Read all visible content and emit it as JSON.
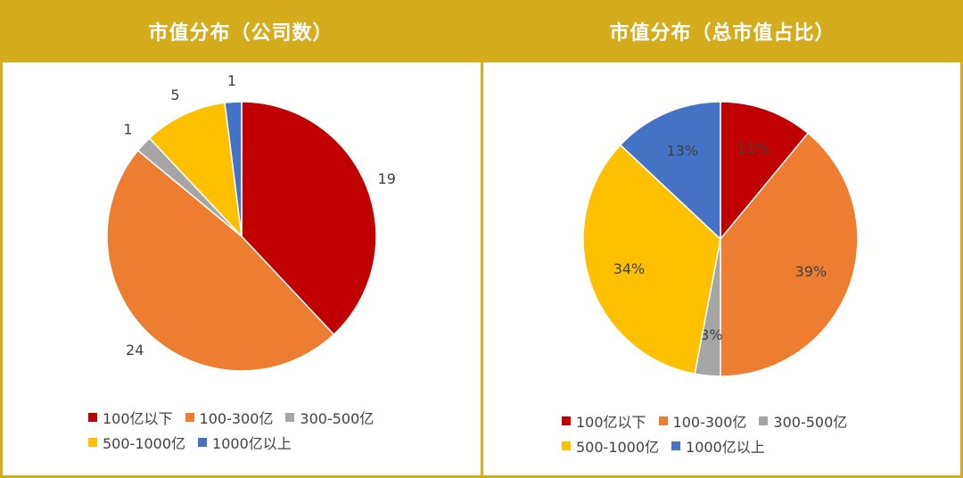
{
  "colors": {
    "frame": "#d4ac1e",
    "cat1": "#c00000",
    "cat2": "#ed7d31",
    "cat3": "#a5a5a5",
    "cat4": "#ffc000",
    "cat5": "#4472c4"
  },
  "legend": [
    "100亿以下",
    "100-300亿",
    "300-500亿",
    "500-1000亿",
    "1000亿以上"
  ],
  "chart_data": [
    {
      "type": "pie",
      "title": "市值分布（公司数）",
      "categories": [
        "100亿以下",
        "100-300亿",
        "300-500亿",
        "500-1000亿",
        "1000亿以上"
      ],
      "values": [
        19,
        24,
        1,
        5,
        1
      ],
      "labels": [
        "19",
        "24",
        "1",
        "5",
        "1"
      ],
      "legend_position": "bottom"
    },
    {
      "type": "pie",
      "title": "市值分布（总市值占比）",
      "categories": [
        "100亿以下",
        "100-300亿",
        "300-500亿",
        "500-1000亿",
        "1000亿以上"
      ],
      "values": [
        11,
        39,
        3,
        34,
        13
      ],
      "labels": [
        "11%",
        "39%",
        "3%",
        "34%",
        "13%"
      ],
      "legend_position": "bottom"
    }
  ]
}
